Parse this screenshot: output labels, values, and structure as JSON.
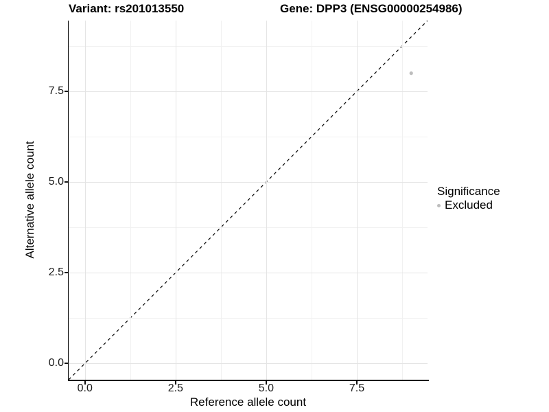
{
  "titles": {
    "variant": "Variant: rs201013550",
    "gene": "Gene: DPP3 (ENSG00000254986)"
  },
  "chart_data": {
    "type": "scatter",
    "xlabel": "Reference allele count",
    "ylabel": "Alternative allele count",
    "xlim": [
      -0.45,
      9.45
    ],
    "ylim": [
      -0.45,
      9.45
    ],
    "x_ticks": {
      "values": [
        0,
        2.5,
        5,
        7.5
      ],
      "labels": [
        "0.0",
        "2.5",
        "5.0",
        "7.5"
      ]
    },
    "y_ticks": {
      "values": [
        0,
        2.5,
        5,
        7.5
      ],
      "labels": [
        "0.0",
        "2.5",
        "5.0",
        "7.5"
      ]
    },
    "x_minor": [
      1.25,
      3.75,
      6.25,
      8.75
    ],
    "y_minor": [
      1.25,
      3.75,
      6.25,
      8.75
    ],
    "grid": true,
    "points": [
      {
        "x": 9,
        "y": 8,
        "series": "Excluded",
        "color": "#bdbdbd",
        "r": 2.6
      }
    ],
    "identity_line": {
      "from": [
        -0.45,
        -0.45
      ],
      "to": [
        9.45,
        9.45
      ],
      "style": "dashed",
      "color": "#000000"
    },
    "legend": {
      "title": "Significance",
      "position": "right",
      "items": [
        {
          "label": "Excluded",
          "color": "#bdbdbd"
        }
      ]
    }
  },
  "colors": {
    "grid_major": "#e4e4e4",
    "grid_minor": "#f1f1f1",
    "axis_line": "#000000",
    "point_gray": "#bdbdbd"
  }
}
